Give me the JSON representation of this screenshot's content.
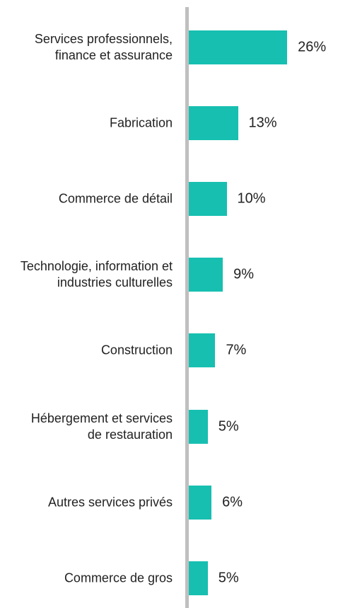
{
  "chart_data": {
    "type": "bar",
    "orientation": "horizontal",
    "color": "#17bfb0",
    "categories": [
      "Services professionnels, finance et assurance",
      "Fabrication",
      "Commerce de détail",
      "Technologie, information et industries culturelles",
      "Construction",
      "Hébergement et services de restauration",
      "Autres services privés",
      "Commerce de gros"
    ],
    "values": [
      26,
      13,
      10,
      9,
      7,
      5,
      6,
      5
    ],
    "value_labels": [
      "26%",
      "13%",
      "10%",
      "9%",
      "7%",
      "5%",
      "6%",
      "5%"
    ]
  }
}
